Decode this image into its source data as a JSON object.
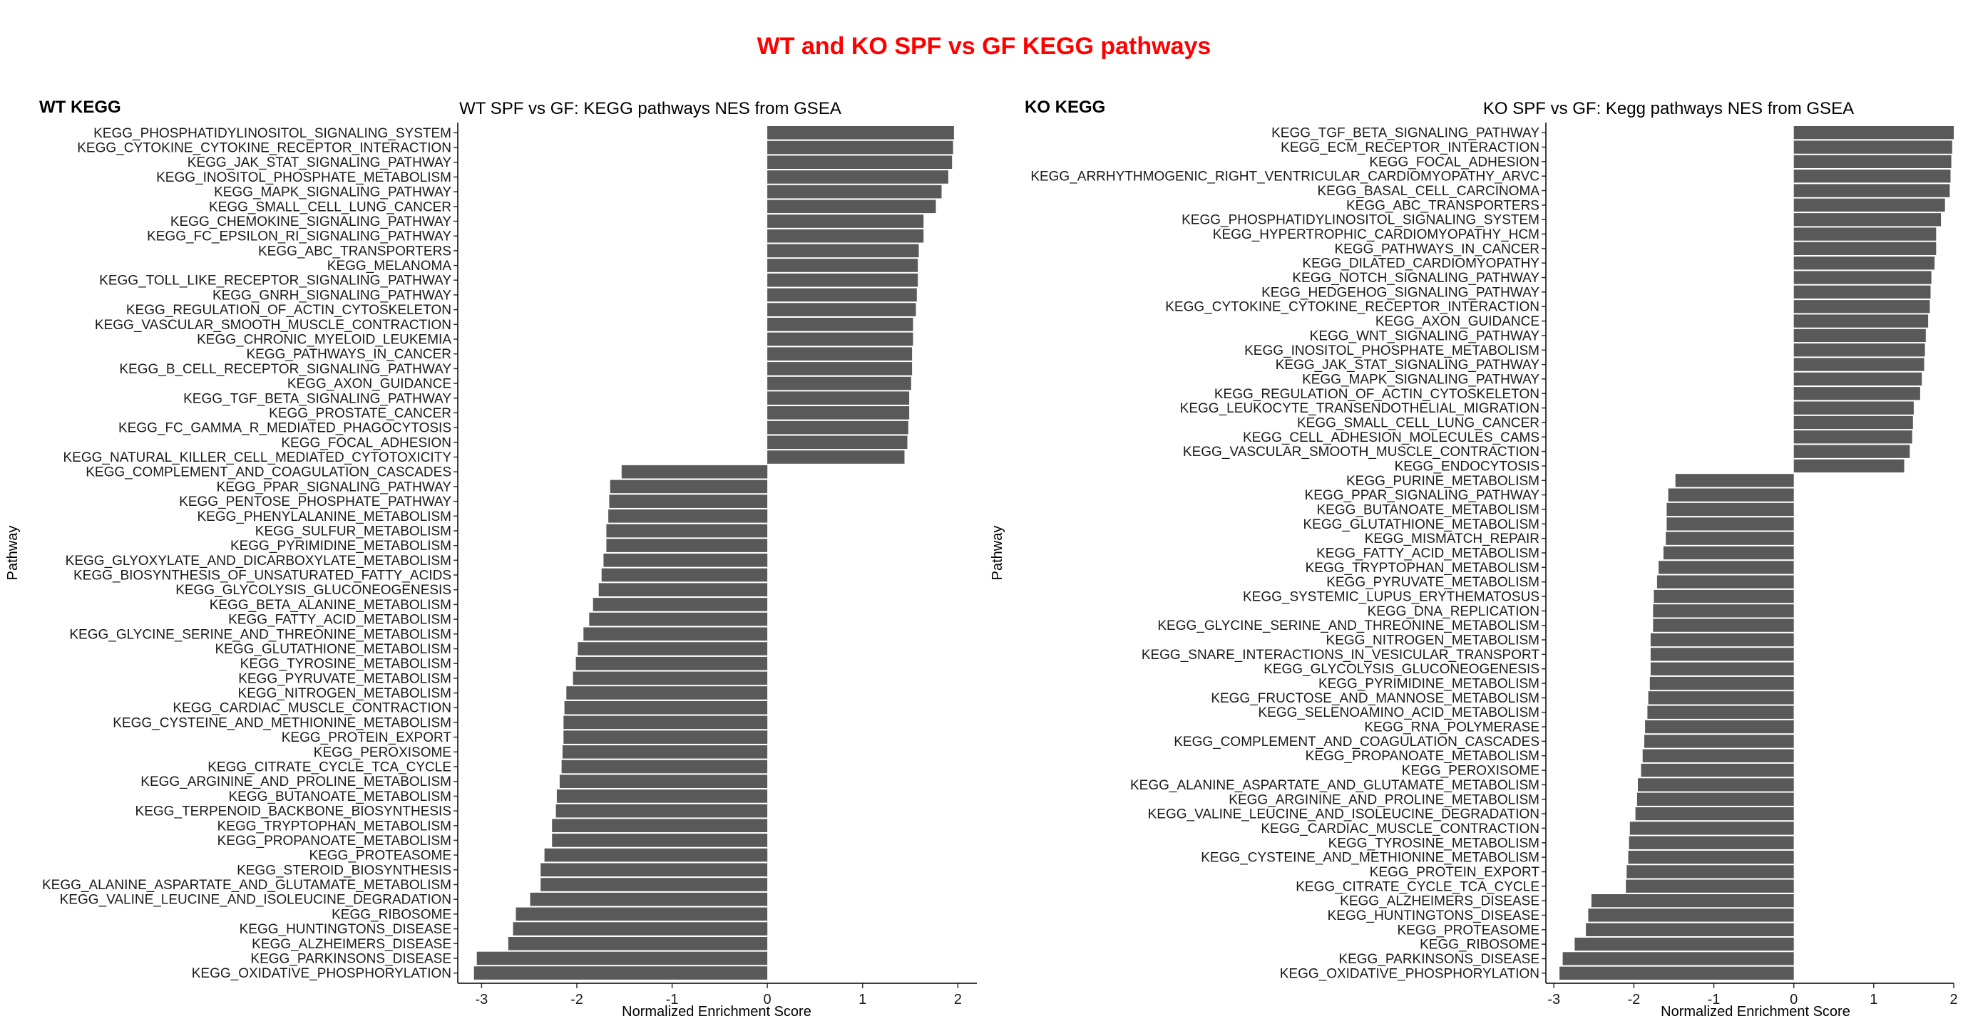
{
  "figure_title": "WT and KO SPF vs GF KEGG pathways",
  "colors": {
    "title": "#ff0000",
    "bar": "#595959"
  },
  "chart_data": [
    {
      "type": "bar",
      "orientation": "horizontal",
      "panel_tag": "WT KEGG",
      "title": "WT SPF vs GF: KEGG pathways NES from GSEA",
      "xlabel": "Normalized Enrichment Score",
      "ylabel": "Pathway",
      "xlim": [
        -3.25,
        2.2
      ],
      "xticks": [
        -3,
        -2,
        -1,
        0,
        1,
        2
      ],
      "grid": false,
      "categories": [
        "KEGG_PHOSPHATIDYLINOSITOL_SIGNALING_SYSTEM",
        "KEGG_CYTOKINE_CYTOKINE_RECEPTOR_INTERACTION",
        "KEGG_JAK_STAT_SIGNALING_PATHWAY",
        "KEGG_INOSITOL_PHOSPHATE_METABOLISM",
        "KEGG_MAPK_SIGNALING_PATHWAY",
        "KEGG_SMALL_CELL_LUNG_CANCER",
        "KEGG_CHEMOKINE_SIGNALING_PATHWAY",
        "KEGG_FC_EPSILON_RI_SIGNALING_PATHWAY",
        "KEGG_ABC_TRANSPORTERS",
        "KEGG_MELANOMA",
        "KEGG_TOLL_LIKE_RECEPTOR_SIGNALING_PATHWAY",
        "KEGG_GNRH_SIGNALING_PATHWAY",
        "KEGG_REGULATION_OF_ACTIN_CYTOSKELETON",
        "KEGG_VASCULAR_SMOOTH_MUSCLE_CONTRACTION",
        "KEGG_CHRONIC_MYELOID_LEUKEMIA",
        "KEGG_PATHWAYS_IN_CANCER",
        "KEGG_B_CELL_RECEPTOR_SIGNALING_PATHWAY",
        "KEGG_AXON_GUIDANCE",
        "KEGG_TGF_BETA_SIGNALING_PATHWAY",
        "KEGG_PROSTATE_CANCER",
        "KEGG_FC_GAMMA_R_MEDIATED_PHAGOCYTOSIS",
        "KEGG_FOCAL_ADHESION",
        "KEGG_NATURAL_KILLER_CELL_MEDIATED_CYTOTOXICITY",
        "KEGG_COMPLEMENT_AND_COAGULATION_CASCADES",
        "KEGG_PPAR_SIGNALING_PATHWAY",
        "KEGG_PENTOSE_PHOSPHATE_PATHWAY",
        "KEGG_PHENYLALANINE_METABOLISM",
        "KEGG_SULFUR_METABOLISM",
        "KEGG_PYRIMIDINE_METABOLISM",
        "KEGG_GLYOXYLATE_AND_DICARBOXYLATE_METABOLISM",
        "KEGG_BIOSYNTHESIS_OF_UNSATURATED_FATTY_ACIDS",
        "KEGG_GLYCOLYSIS_GLUCONEOGENESIS",
        "KEGG_BETA_ALANINE_METABOLISM",
        "KEGG_FATTY_ACID_METABOLISM",
        "KEGG_GLYCINE_SERINE_AND_THREONINE_METABOLISM",
        "KEGG_GLUTATHIONE_METABOLISM",
        "KEGG_TYROSINE_METABOLISM",
        "KEGG_PYRUVATE_METABOLISM",
        "KEGG_NITROGEN_METABOLISM",
        "KEGG_CARDIAC_MUSCLE_CONTRACTION",
        "KEGG_CYSTEINE_AND_METHIONINE_METABOLISM",
        "KEGG_PROTEIN_EXPORT",
        "KEGG_PEROXISOME",
        "KEGG_CITRATE_CYCLE_TCA_CYCLE",
        "KEGG_ARGININE_AND_PROLINE_METABOLISM",
        "KEGG_BUTANOATE_METABOLISM",
        "KEGG_TERPENOID_BACKBONE_BIOSYNTHESIS",
        "KEGG_TRYPTOPHAN_METABOLISM",
        "KEGG_PROPANOATE_METABOLISM",
        "KEGG_PROTEASOME",
        "KEGG_STEROID_BIOSYNTHESIS",
        "KEGG_ALANINE_ASPARTATE_AND_GLUTAMATE_METABOLISM",
        "KEGG_VALINE_LEUCINE_AND_ISOLEUCINE_DEGRADATION",
        "KEGG_RIBOSOME",
        "KEGG_HUNTINGTONS_DISEASE",
        "KEGG_ALZHEIMERS_DISEASE",
        "KEGG_PARKINSONS_DISEASE",
        "KEGG_OXIDATIVE_PHOSPHORYLATION"
      ],
      "values": [
        1.96,
        1.95,
        1.94,
        1.9,
        1.83,
        1.77,
        1.64,
        1.64,
        1.59,
        1.58,
        1.58,
        1.57,
        1.56,
        1.53,
        1.53,
        1.52,
        1.52,
        1.51,
        1.49,
        1.49,
        1.48,
        1.47,
        1.44,
        -1.53,
        -1.65,
        -1.66,
        -1.67,
        -1.69,
        -1.69,
        -1.72,
        -1.74,
        -1.77,
        -1.83,
        -1.87,
        -1.93,
        -1.99,
        -2.01,
        -2.04,
        -2.11,
        -2.13,
        -2.14,
        -2.14,
        -2.15,
        -2.16,
        -2.18,
        -2.21,
        -2.22,
        -2.26,
        -2.26,
        -2.34,
        -2.38,
        -2.38,
        -2.49,
        -2.64,
        -2.67,
        -2.72,
        -3.05,
        -3.08
      ]
    },
    {
      "type": "bar",
      "orientation": "horizontal",
      "panel_tag": "KO KEGG",
      "title": "KO SPF vs GF: Kegg pathways NES from GSEA",
      "xlabel": "Normalized Enrichment Score",
      "ylabel": "Pathway",
      "xlim": [
        -3.1,
        2.0
      ],
      "xticks": [
        -3,
        -2,
        -1,
        0,
        1,
        2
      ],
      "grid": false,
      "categories": [
        "KEGG_TGF_BETA_SIGNALING_PATHWAY",
        "KEGG_ECM_RECEPTOR_INTERACTION",
        "KEGG_FOCAL_ADHESION",
        "KEGG_ARRHYTHMOGENIC_RIGHT_VENTRICULAR_CARDIOMYOPATHY_ARVC",
        "KEGG_BASAL_CELL_CARCINOMA",
        "KEGG_ABC_TRANSPORTERS",
        "KEGG_PHOSPHATIDYLINOSITOL_SIGNALING_SYSTEM",
        "KEGG_HYPERTROPHIC_CARDIOMYOPATHY_HCM",
        "KEGG_PATHWAYS_IN_CANCER",
        "KEGG_DILATED_CARDIOMYOPATHY",
        "KEGG_NOTCH_SIGNALING_PATHWAY",
        "KEGG_HEDGEHOG_SIGNALING_PATHWAY",
        "KEGG_CYTOKINE_CYTOKINE_RECEPTOR_INTERACTION",
        "KEGG_AXON_GUIDANCE",
        "KEGG_WNT_SIGNALING_PATHWAY",
        "KEGG_INOSITOL_PHOSPHATE_METABOLISM",
        "KEGG_JAK_STAT_SIGNALING_PATHWAY",
        "KEGG_MAPK_SIGNALING_PATHWAY",
        "KEGG_REGULATION_OF_ACTIN_CYTOSKELETON",
        "KEGG_LEUKOCYTE_TRANSENDOTHELIAL_MIGRATION",
        "KEGG_SMALL_CELL_LUNG_CANCER",
        "KEGG_CELL_ADHESION_MOLECULES_CAMS",
        "KEGG_VASCULAR_SMOOTH_MUSCLE_CONTRACTION",
        "KEGG_ENDOCYTOSIS",
        "KEGG_PURINE_METABOLISM",
        "KEGG_PPAR_SIGNALING_PATHWAY",
        "KEGG_BUTANOATE_METABOLISM",
        "KEGG_GLUTATHIONE_METABOLISM",
        "KEGG_MISMATCH_REPAIR",
        "KEGG_FATTY_ACID_METABOLISM",
        "KEGG_TRYPTOPHAN_METABOLISM",
        "KEGG_PYRUVATE_METABOLISM",
        "KEGG_SYSTEMIC_LUPUS_ERYTHEMATOSUS",
        "KEGG_DNA_REPLICATION",
        "KEGG_GLYCINE_SERINE_AND_THREONINE_METABOLISM",
        "KEGG_NITROGEN_METABOLISM",
        "KEGG_SNARE_INTERACTIONS_IN_VESICULAR_TRANSPORT",
        "KEGG_GLYCOLYSIS_GLUCONEOGENESIS",
        "KEGG_PYRIMIDINE_METABOLISM",
        "KEGG_FRUCTOSE_AND_MANNOSE_METABOLISM",
        "KEGG_SELENOAMINO_ACID_METABOLISM",
        "KEGG_RNA_POLYMERASE",
        "KEGG_COMPLEMENT_AND_COAGULATION_CASCADES",
        "KEGG_PROPANOATE_METABOLISM",
        "KEGG_PEROXISOME",
        "KEGG_ALANINE_ASPARTATE_AND_GLUTAMATE_METABOLISM",
        "KEGG_ARGININE_AND_PROLINE_METABOLISM",
        "KEGG_VALINE_LEUCINE_AND_ISOLEUCINE_DEGRADATION",
        "KEGG_CARDIAC_MUSCLE_CONTRACTION",
        "KEGG_TYROSINE_METABOLISM",
        "KEGG_CYSTEINE_AND_METHIONINE_METABOLISM",
        "KEGG_PROTEIN_EXPORT",
        "KEGG_CITRATE_CYCLE_TCA_CYCLE",
        "KEGG_ALZHEIMERS_DISEASE",
        "KEGG_HUNTINGTONS_DISEASE",
        "KEGG_PROTEASOME",
        "KEGG_RIBOSOME",
        "KEGG_PARKINSONS_DISEASE",
        "KEGG_OXIDATIVE_PHOSPHORYLATION"
      ],
      "values": [
        2.0,
        1.98,
        1.97,
        1.96,
        1.95,
        1.89,
        1.84,
        1.78,
        1.78,
        1.76,
        1.72,
        1.71,
        1.7,
        1.68,
        1.65,
        1.64,
        1.63,
        1.6,
        1.58,
        1.5,
        1.49,
        1.48,
        1.45,
        1.38,
        -1.48,
        -1.57,
        -1.59,
        -1.59,
        -1.6,
        -1.63,
        -1.69,
        -1.71,
        -1.75,
        -1.76,
        -1.76,
        -1.79,
        -1.79,
        -1.79,
        -1.8,
        -1.82,
        -1.83,
        -1.86,
        -1.87,
        -1.89,
        -1.91,
        -1.95,
        -1.96,
        -1.98,
        -2.05,
        -2.06,
        -2.07,
        -2.09,
        -2.1,
        -2.53,
        -2.57,
        -2.6,
        -2.74,
        -2.89,
        -2.93
      ]
    }
  ]
}
